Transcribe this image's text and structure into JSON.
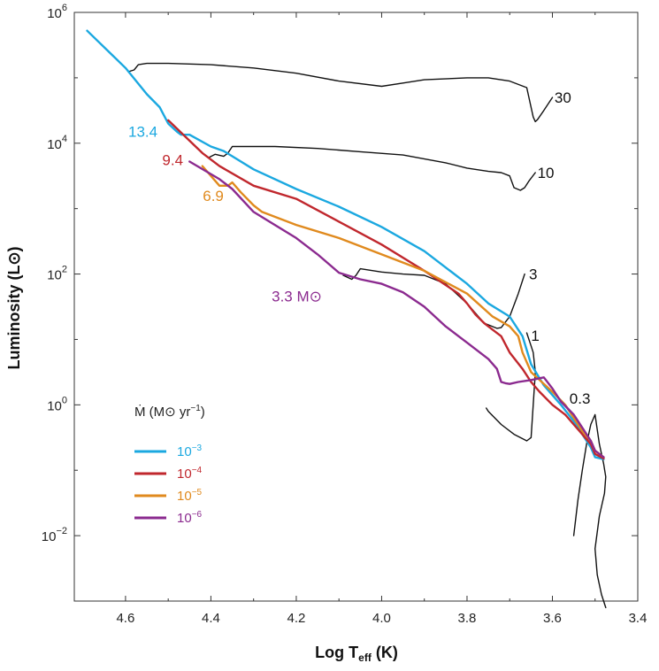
{
  "chart_data": {
    "type": "line",
    "title": "",
    "xlabel_main": "Log T",
    "xlabel_sub": "eff",
    "xlabel_unit": " (K)",
    "ylabel": "Luminosity (L⊙)",
    "xlim": [
      4.72,
      3.4
    ],
    "ylim": [
      -3.0,
      6.0
    ],
    "x_axis_reversed": true,
    "y_scale": "log10",
    "x_ticks": [
      4.6,
      4.4,
      4.2,
      4.0,
      3.8,
      3.6,
      3.4
    ],
    "x_tick_labels": [
      "4.6",
      "4.4",
      "4.2",
      "4.0",
      "3.8",
      "3.6",
      "3.4"
    ],
    "y_major_ticks": [
      {
        "log": 6,
        "base": "10",
        "exp": "6"
      },
      {
        "log": 4,
        "base": "10",
        "exp": "4"
      },
      {
        "log": 2,
        "base": "10",
        "exp": "2"
      },
      {
        "log": 0,
        "base": "10",
        "exp": "0"
      },
      {
        "log": -2,
        "base": "10",
        "exp": "−2"
      }
    ],
    "y_minor_ticks": [
      5,
      3,
      1,
      -1
    ],
    "legend": {
      "title_prefix": "Ṁ",
      "title_paren": "(M⊙ yr",
      "title_exp": "−1",
      "title_close": ")",
      "placement": "lower-left",
      "entries": [
        {
          "base": "10",
          "exp": "−3",
          "color": "#1ba8e0"
        },
        {
          "base": "10",
          "exp": "−4",
          "color": "#c0272d"
        },
        {
          "base": "10",
          "exp": "−5",
          "color": "#e08a1e"
        },
        {
          "base": "10",
          "exp": "−6",
          "color": "#8b2a8f"
        }
      ]
    },
    "series": [
      {
        "name": "30 M⊙ track",
        "color": "#111111",
        "x": [
          4.59,
          4.58,
          4.57,
          4.55,
          4.5,
          4.4,
          4.3,
          4.2,
          4.1,
          4.0,
          3.95,
          3.9,
          3.8,
          3.75,
          3.7,
          3.66,
          3.645,
          3.64,
          3.635,
          3.62,
          3.6
        ],
        "y": [
          5.1,
          5.12,
          5.2,
          5.22,
          5.22,
          5.2,
          5.15,
          5.07,
          4.95,
          4.87,
          4.92,
          4.97,
          5.0,
          5.0,
          4.95,
          4.85,
          4.4,
          4.33,
          4.36,
          4.5,
          4.7
        ]
      },
      {
        "name": "10 M⊙ track",
        "color": "#111111",
        "x": [
          4.405,
          4.39,
          4.37,
          4.36,
          4.35,
          4.25,
          4.15,
          4.05,
          3.95,
          3.85,
          3.8,
          3.75,
          3.72,
          3.7,
          3.69,
          3.675,
          3.665,
          3.655,
          3.64
        ],
        "y": [
          3.78,
          3.83,
          3.8,
          3.85,
          3.95,
          3.95,
          3.92,
          3.87,
          3.82,
          3.7,
          3.62,
          3.57,
          3.55,
          3.5,
          3.32,
          3.28,
          3.32,
          3.42,
          3.55
        ]
      },
      {
        "name": "3 M⊙ track",
        "color": "#111111",
        "x": [
          4.09,
          4.08,
          4.07,
          4.06,
          4.05,
          4.0,
          3.95,
          3.9,
          3.85,
          3.8,
          3.76,
          3.73,
          3.72,
          3.7,
          3.68,
          3.665
        ],
        "y": [
          1.98,
          1.95,
          1.92,
          1.98,
          2.08,
          2.03,
          2.0,
          1.98,
          1.85,
          1.55,
          1.25,
          1.17,
          1.18,
          1.35,
          1.7,
          2.0
        ]
      },
      {
        "name": "1 M⊙ track",
        "color": "#111111",
        "x": [
          3.755,
          3.75,
          3.72,
          3.69,
          3.66,
          3.65,
          3.645,
          3.64,
          3.645,
          3.65,
          3.66
        ],
        "y": [
          -0.05,
          -0.1,
          -0.3,
          -0.45,
          -0.55,
          -0.5,
          0.0,
          0.5,
          0.8,
          0.9,
          1.1
        ]
      },
      {
        "name": "0.3 M⊙ track",
        "color": "#111111",
        "x": [
          3.55,
          3.54,
          3.53,
          3.52,
          3.51,
          3.5,
          3.49,
          3.48,
          3.475,
          3.478,
          3.49,
          3.5,
          3.495,
          3.485,
          3.475
        ],
        "y": [
          -2.0,
          -1.45,
          -1.0,
          -0.6,
          -0.3,
          -0.15,
          -0.6,
          -0.9,
          -1.1,
          -1.35,
          -1.7,
          -2.2,
          -2.6,
          -2.9,
          -3.1
        ]
      },
      {
        "name": "Ṁ = 10⁻³",
        "color": "#1ba8e0",
        "x": [
          4.69,
          4.6,
          4.55,
          4.52,
          4.5,
          4.48,
          4.47,
          4.45,
          4.4,
          4.37,
          4.3,
          4.2,
          4.1,
          4.0,
          3.9,
          3.8,
          3.75,
          3.7,
          3.67,
          3.65,
          3.62,
          3.58,
          3.55,
          3.53,
          3.51,
          3.5,
          3.48
        ],
        "y": [
          5.72,
          5.15,
          4.75,
          4.55,
          4.3,
          4.18,
          4.13,
          4.13,
          3.95,
          3.88,
          3.6,
          3.3,
          3.03,
          2.72,
          2.35,
          1.85,
          1.55,
          1.35,
          1.05,
          0.62,
          0.3,
          0.0,
          -0.25,
          -0.45,
          -0.65,
          -0.8,
          -0.83
        ]
      },
      {
        "name": "Ṁ = 10⁻⁴",
        "color": "#c0272d",
        "x": [
          4.5,
          4.46,
          4.42,
          4.38,
          4.3,
          4.2,
          4.1,
          4.0,
          3.9,
          3.82,
          3.8,
          3.78,
          3.76,
          3.74,
          3.72,
          3.7,
          3.67,
          3.65,
          3.63,
          3.6,
          3.57,
          3.55,
          3.53,
          3.51,
          3.5,
          3.48
        ],
        "y": [
          4.35,
          4.1,
          3.85,
          3.65,
          3.35,
          3.15,
          2.8,
          2.45,
          2.05,
          1.7,
          1.55,
          1.38,
          1.25,
          1.15,
          1.05,
          0.8,
          0.55,
          0.35,
          0.2,
          0.0,
          -0.15,
          -0.3,
          -0.45,
          -0.6,
          -0.75,
          -0.82
        ]
      },
      {
        "name": "Ṁ = 10⁻⁵",
        "color": "#e08a1e",
        "x": [
          4.42,
          4.38,
          4.36,
          4.35,
          4.33,
          4.3,
          4.28,
          4.2,
          4.1,
          4.0,
          3.9,
          3.8,
          3.74,
          3.7,
          3.68,
          3.67,
          3.65,
          3.6,
          3.57,
          3.55,
          3.53,
          3.51,
          3.5,
          3.48
        ],
        "y": [
          3.65,
          3.35,
          3.35,
          3.4,
          3.25,
          3.05,
          2.95,
          2.75,
          2.55,
          2.3,
          2.05,
          1.7,
          1.35,
          1.2,
          1.05,
          0.8,
          0.5,
          0.2,
          0.0,
          -0.2,
          -0.4,
          -0.55,
          -0.7,
          -0.8
        ]
      },
      {
        "name": "Ṁ = 10⁻⁶",
        "color": "#8b2a8f",
        "x": [
          4.45,
          4.38,
          4.35,
          4.3,
          4.2,
          4.15,
          4.1,
          4.05,
          4.0,
          3.95,
          3.9,
          3.85,
          3.8,
          3.75,
          3.73,
          3.725,
          3.72,
          3.71,
          3.7,
          3.68,
          3.65,
          3.62,
          3.6,
          3.58,
          3.55,
          3.53,
          3.51,
          3.5,
          3.48
        ],
        "y": [
          3.72,
          3.45,
          3.3,
          2.95,
          2.55,
          2.3,
          2.02,
          1.92,
          1.85,
          1.72,
          1.5,
          1.2,
          0.95,
          0.7,
          0.55,
          0.45,
          0.35,
          0.33,
          0.32,
          0.35,
          0.38,
          0.42,
          0.25,
          0.05,
          -0.15,
          -0.35,
          -0.55,
          -0.7,
          -0.8
        ]
      }
    ],
    "annotations": [
      {
        "text": "30",
        "x": 3.595,
        "y": 4.7,
        "color": "#111111",
        "anchor": "start"
      },
      {
        "text": "10",
        "x": 3.635,
        "y": 3.55,
        "color": "#111111",
        "anchor": "start"
      },
      {
        "text": "3",
        "x": 3.655,
        "y": 2.0,
        "color": "#111111",
        "anchor": "start"
      },
      {
        "text": "1",
        "x": 3.65,
        "y": 1.06,
        "color": "#111111",
        "anchor": "start"
      },
      {
        "text": "0.3",
        "x": 3.56,
        "y": 0.1,
        "color": "#111111",
        "anchor": "start"
      },
      {
        "text": "13.4",
        "x": 4.525,
        "y": 4.18,
        "color": "#1ba8e0",
        "anchor": "end"
      },
      {
        "text": "9.4",
        "x": 4.465,
        "y": 3.75,
        "color": "#c0272d",
        "anchor": "end"
      },
      {
        "text": "6.9",
        "x": 4.37,
        "y": 3.2,
        "color": "#e08a1e",
        "anchor": "end"
      },
      {
        "text": "3.3 M⊙",
        "x": 4.14,
        "y": 1.66,
        "color": "#8b2a8f",
        "anchor": "end"
      }
    ]
  }
}
